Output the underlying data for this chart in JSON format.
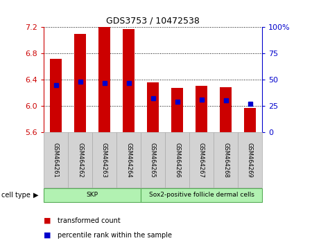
{
  "title": "GDS3753 / 10472538",
  "samples": [
    "GSM464261",
    "GSM464262",
    "GSM464263",
    "GSM464264",
    "GSM464265",
    "GSM464266",
    "GSM464267",
    "GSM464268",
    "GSM464269"
  ],
  "red_values": [
    6.72,
    7.09,
    7.2,
    7.17,
    6.36,
    6.27,
    6.31,
    6.28,
    5.97
  ],
  "blue_values": [
    45,
    48,
    47,
    47,
    32,
    29,
    31,
    30,
    27
  ],
  "ylim_left": [
    5.6,
    7.2
  ],
  "ylim_right": [
    0,
    100
  ],
  "yticks_left": [
    5.6,
    6.0,
    6.4,
    6.8,
    7.2
  ],
  "yticks_right": [
    0,
    25,
    50,
    75,
    100
  ],
  "bar_bottom": 5.6,
  "red_color": "#cc0000",
  "blue_color": "#0000cc",
  "bar_width": 0.5,
  "blue_marker_size": 4,
  "bg_color": "#ffffff",
  "plot_bg": "#ffffff",
  "tick_label_color_left": "#cc0000",
  "tick_label_color_right": "#0000cc",
  "grid_ticks": [
    6.0,
    6.4,
    6.8
  ],
  "cell_type_labels": [
    "SKP",
    "Sox2-positive follicle dermal cells"
  ],
  "cell_type_color": "#b2f2b2",
  "cell_type_edge": "#55aa55",
  "cell_type_ranges": [
    [
      0,
      4
    ],
    [
      4,
      9
    ]
  ],
  "sample_box_color": "#d3d3d3",
  "legend_items": [
    {
      "label": "transformed count",
      "color": "#cc0000"
    },
    {
      "label": "percentile rank within the sample",
      "color": "#0000cc"
    }
  ]
}
